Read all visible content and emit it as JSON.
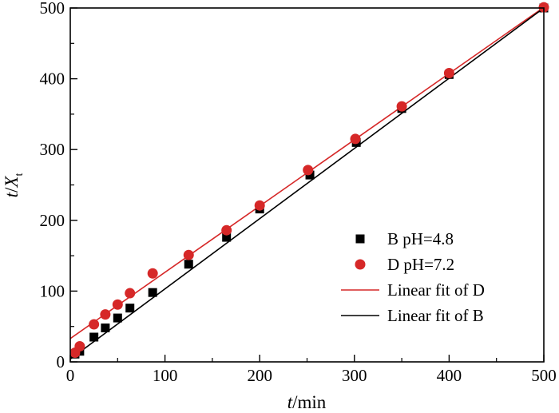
{
  "chart_data": {
    "type": "scatter",
    "xlabel": {
      "var": "t",
      "unit": "/min"
    },
    "ylabel": {
      "var": "t",
      "sep": "/",
      "sym": "X",
      "sub": "t"
    },
    "xlim": [
      0,
      500
    ],
    "ylim": [
      0,
      500
    ],
    "xticks": [
      0,
      100,
      200,
      300,
      400,
      500
    ],
    "yticks": [
      0,
      100,
      200,
      300,
      400,
      500
    ],
    "grid": false,
    "legend_position": "bottom-right",
    "series": [
      {
        "name": "B pH=4.8",
        "kind": "scatter",
        "marker": "square",
        "color": "#000000",
        "x": [
          5,
          10,
          25,
          37,
          50,
          63,
          87,
          125,
          165,
          200,
          253,
          302,
          350,
          400,
          500
        ],
        "y": [
          11,
          15,
          35,
          48,
          62,
          76,
          98,
          138,
          176,
          216,
          264,
          310,
          358,
          406,
          500
        ]
      },
      {
        "name": "D pH=7.2",
        "kind": "scatter",
        "marker": "circle",
        "color": "#d62828",
        "x": [
          5,
          10,
          25,
          37,
          50,
          63,
          87,
          125,
          165,
          200,
          251,
          301,
          350,
          400,
          500
        ],
        "y": [
          13,
          22,
          53,
          67,
          81,
          97,
          125,
          151,
          186,
          221,
          271,
          315,
          361,
          408,
          501
        ]
      },
      {
        "name": "Linear fit of D",
        "kind": "line",
        "color": "#d62828",
        "x": [
          0,
          500
        ],
        "y": [
          33,
          501
        ]
      },
      {
        "name": "Linear fit of B",
        "kind": "line",
        "color": "#000000",
        "x": [
          0,
          500
        ],
        "y": [
          4,
          500
        ]
      }
    ]
  }
}
